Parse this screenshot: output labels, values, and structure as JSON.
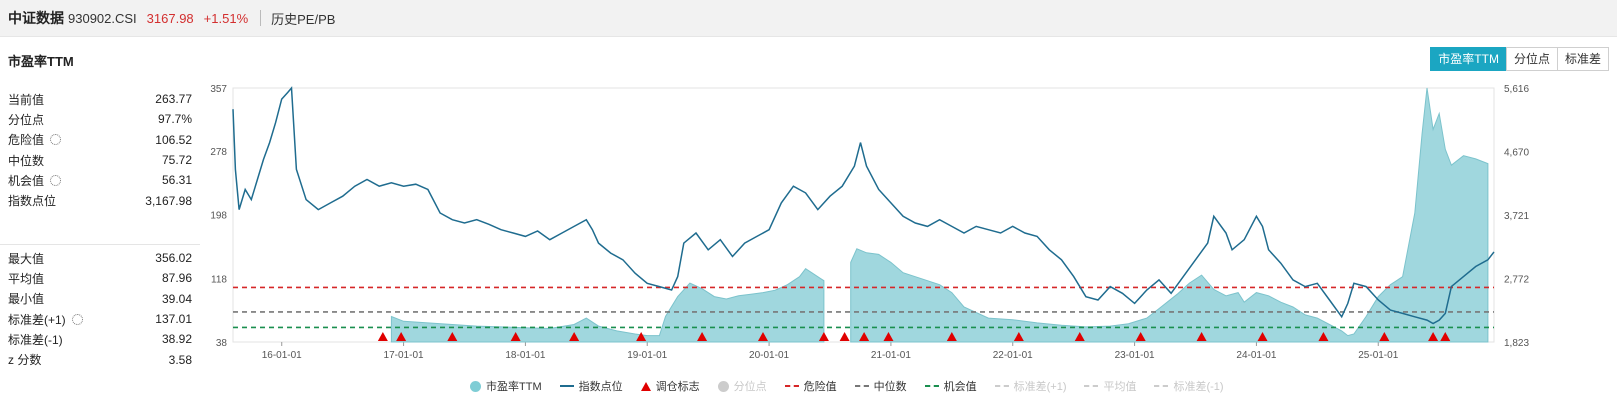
{
  "header": {
    "brand": "中证数据",
    "code": "930902.CSI",
    "price": "3167.98",
    "change": "+1.51%",
    "subtitle": "历史PE/PB"
  },
  "section_title": "市盈率TTM",
  "tabs": [
    {
      "label": "市盈率TTM",
      "active": true
    },
    {
      "label": "分位点",
      "active": false
    },
    {
      "label": "标准差",
      "active": false
    }
  ],
  "stats_top": [
    {
      "label": "当前值",
      "value": "263.77",
      "gear": false
    },
    {
      "label": "分位点",
      "value": "97.7%",
      "gear": false
    },
    {
      "label": "危险值",
      "value": "106.52",
      "gear": true
    },
    {
      "label": "中位数",
      "value": "75.72",
      "gear": false
    },
    {
      "label": "机会值",
      "value": "56.31",
      "gear": true
    },
    {
      "label": "指数点位",
      "value": "3,167.98",
      "gear": false
    }
  ],
  "stats_bottom": [
    {
      "label": "最大值",
      "value": "356.02",
      "gear": false
    },
    {
      "label": "平均值",
      "value": "87.96",
      "gear": false
    },
    {
      "label": "最小值",
      "value": "39.04",
      "gear": false
    },
    {
      "label": "标准差(+1)",
      "value": "137.01",
      "gear": true
    },
    {
      "label": "标准差(-1)",
      "value": "38.92",
      "gear": false
    },
    {
      "label": "z 分数",
      "value": "3.58",
      "gear": false
    }
  ],
  "legend": [
    {
      "label": "市盈率TTM",
      "symbol": "dot",
      "color": "#7fcdd5",
      "active": true
    },
    {
      "label": "指数点位",
      "symbol": "line",
      "color": "#1f6c8f",
      "active": true
    },
    {
      "label": "调仓标志",
      "symbol": "triangle",
      "color": "#e00000",
      "active": true
    },
    {
      "label": "分位点",
      "symbol": "dot",
      "color": "#cccccc",
      "active": false
    },
    {
      "label": "危险值",
      "symbol": "dash",
      "color": "#d62728",
      "active": true
    },
    {
      "label": "中位数",
      "symbol": "dash",
      "color": "#777777",
      "active": true
    },
    {
      "label": "机会值",
      "symbol": "dash",
      "color": "#1a8f4f",
      "active": true
    },
    {
      "label": "标准差(+1)",
      "symbol": "dash",
      "color": "#cccccc",
      "active": false
    },
    {
      "label": "平均值",
      "symbol": "dash",
      "color": "#cccccc",
      "active": false
    },
    {
      "label": "标准差(-1)",
      "symbol": "dash",
      "color": "#cccccc",
      "active": false
    }
  ],
  "chart_data": {
    "type": "area",
    "x_ticks": [
      "16-01-01",
      "17-01-01",
      "18-01-01",
      "19-01-01",
      "20-01-01",
      "21-01-01",
      "22-01-01",
      "23-01-01",
      "24-01-01",
      "25-01-01"
    ],
    "x_range": [
      2015.6,
      2025.95
    ],
    "y_left": {
      "range": [
        38,
        357
      ],
      "ticks": [
        38,
        118,
        198,
        278,
        357
      ]
    },
    "y_right": {
      "range": [
        1823,
        5616
      ],
      "ticks": [
        1823,
        2772,
        3721,
        4670,
        5616
      ]
    },
    "reference_lines": {
      "danger": 106.52,
      "median": 75.72,
      "opportunity": 56.31
    },
    "series": [
      {
        "name": "市盈率TTM",
        "axis": "left",
        "segments": [
          [
            [
              2016.9,
              70
            ],
            [
              2017.0,
              64
            ],
            [
              2017.2,
              62
            ],
            [
              2017.4,
              60
            ],
            [
              2017.6,
              58
            ],
            [
              2017.8,
              57
            ],
            [
              2018.0,
              56
            ],
            [
              2018.2,
              55
            ],
            [
              2018.4,
              60
            ],
            [
              2018.5,
              68
            ],
            [
              2018.6,
              58
            ],
            [
              2018.75,
              52
            ],
            [
              2018.9,
              48
            ],
            [
              2019.0,
              46
            ],
            [
              2019.1,
              46
            ],
            [
              2019.15,
              70
            ],
            [
              2019.25,
              95
            ],
            [
              2019.35,
              112
            ],
            [
              2019.45,
              105
            ],
            [
              2019.55,
              95
            ],
            [
              2019.65,
              92
            ],
            [
              2019.75,
              96
            ],
            [
              2019.85,
              98
            ],
            [
              2019.95,
              100
            ],
            [
              2020.05,
              103
            ],
            [
              2020.15,
              110
            ],
            [
              2020.25,
              120
            ],
            [
              2020.3,
              130
            ],
            [
              2020.35,
              125
            ],
            [
              2020.42,
              118
            ],
            [
              2020.45,
              115
            ]
          ],
          [
            [
              2020.67,
              138
            ],
            [
              2020.72,
              155
            ],
            [
              2020.8,
              150
            ],
            [
              2020.9,
              148
            ],
            [
              2021.0,
              138
            ],
            [
              2021.1,
              125
            ],
            [
              2021.2,
              120
            ],
            [
              2021.3,
              115
            ],
            [
              2021.4,
              110
            ],
            [
              2021.5,
              100
            ],
            [
              2021.6,
              82
            ],
            [
              2021.8,
              68
            ],
            [
              2022.0,
              66
            ],
            [
              2022.2,
              62
            ],
            [
              2022.4,
              59
            ],
            [
              2022.6,
              57
            ],
            [
              2022.8,
              58
            ],
            [
              2022.95,
              61
            ],
            [
              2023.1,
              68
            ],
            [
              2023.2,
              80
            ],
            [
              2023.35,
              98
            ],
            [
              2023.45,
              112
            ],
            [
              2023.55,
              122
            ],
            [
              2023.65,
              104
            ],
            [
              2023.75,
              96
            ],
            [
              2023.85,
              100
            ],
            [
              2023.9,
              88
            ],
            [
              2024.0,
              100
            ],
            [
              2024.1,
              96
            ],
            [
              2024.2,
              88
            ],
            [
              2024.3,
              82
            ],
            [
              2024.4,
              72
            ],
            [
              2024.5,
              68
            ],
            [
              2024.6,
              60
            ],
            [
              2024.7,
              52
            ],
            [
              2024.75,
              46
            ],
            [
              2024.8,
              48
            ],
            [
              2024.9,
              70
            ],
            [
              2025.0,
              95
            ],
            [
              2025.1,
              110
            ],
            [
              2025.2,
              120
            ],
            [
              2025.3,
              200
            ],
            [
              2025.36,
              300
            ],
            [
              2025.4,
              357
            ],
            [
              2025.45,
              305
            ],
            [
              2025.5,
              325
            ],
            [
              2025.55,
              280
            ],
            [
              2025.6,
              260
            ],
            [
              2025.7,
              272
            ],
            [
              2025.8,
              268
            ],
            [
              2025.9,
              262
            ]
          ]
        ]
      },
      {
        "name": "指数点位",
        "axis": "right",
        "points": [
          [
            2015.6,
            5300
          ],
          [
            2015.62,
            4400
          ],
          [
            2015.65,
            3800
          ],
          [
            2015.7,
            4100
          ],
          [
            2015.75,
            3950
          ],
          [
            2015.8,
            4250
          ],
          [
            2015.85,
            4550
          ],
          [
            2015.9,
            4800
          ],
          [
            2015.95,
            5100
          ],
          [
            2016.0,
            5450
          ],
          [
            2016.05,
            5550
          ],
          [
            2016.08,
            5616
          ],
          [
            2016.12,
            4400
          ],
          [
            2016.2,
            3950
          ],
          [
            2016.3,
            3800
          ],
          [
            2016.4,
            3900
          ],
          [
            2016.5,
            4000
          ],
          [
            2016.6,
            4150
          ],
          [
            2016.7,
            4250
          ],
          [
            2016.8,
            4150
          ],
          [
            2016.9,
            4200
          ],
          [
            2017.0,
            4150
          ],
          [
            2017.1,
            4180
          ],
          [
            2017.2,
            4100
          ],
          [
            2017.3,
            3750
          ],
          [
            2017.4,
            3650
          ],
          [
            2017.5,
            3600
          ],
          [
            2017.6,
            3650
          ],
          [
            2017.7,
            3580
          ],
          [
            2017.8,
            3500
          ],
          [
            2017.9,
            3450
          ],
          [
            2018.0,
            3400
          ],
          [
            2018.1,
            3480
          ],
          [
            2018.2,
            3350
          ],
          [
            2018.3,
            3450
          ],
          [
            2018.4,
            3550
          ],
          [
            2018.5,
            3650
          ],
          [
            2018.55,
            3500
          ],
          [
            2018.6,
            3300
          ],
          [
            2018.7,
            3150
          ],
          [
            2018.8,
            3050
          ],
          [
            2018.9,
            2850
          ],
          [
            2019.0,
            2700
          ],
          [
            2019.1,
            2650
          ],
          [
            2019.2,
            2600
          ],
          [
            2019.25,
            2800
          ],
          [
            2019.3,
            3300
          ],
          [
            2019.4,
            3450
          ],
          [
            2019.5,
            3200
          ],
          [
            2019.6,
            3350
          ],
          [
            2019.7,
            3100
          ],
          [
            2019.8,
            3300
          ],
          [
            2019.9,
            3400
          ],
          [
            2020.0,
            3500
          ],
          [
            2020.1,
            3900
          ],
          [
            2020.2,
            4150
          ],
          [
            2020.3,
            4050
          ],
          [
            2020.4,
            3800
          ],
          [
            2020.5,
            4000
          ],
          [
            2020.6,
            4150
          ],
          [
            2020.7,
            4450
          ],
          [
            2020.75,
            4800
          ],
          [
            2020.8,
            4450
          ],
          [
            2020.9,
            4100
          ],
          [
            2021.0,
            3900
          ],
          [
            2021.1,
            3700
          ],
          [
            2021.2,
            3600
          ],
          [
            2021.3,
            3550
          ],
          [
            2021.4,
            3650
          ],
          [
            2021.5,
            3550
          ],
          [
            2021.6,
            3450
          ],
          [
            2021.7,
            3550
          ],
          [
            2021.8,
            3500
          ],
          [
            2021.9,
            3450
          ],
          [
            2022.0,
            3550
          ],
          [
            2022.1,
            3450
          ],
          [
            2022.2,
            3400
          ],
          [
            2022.3,
            3200
          ],
          [
            2022.4,
            3050
          ],
          [
            2022.5,
            2800
          ],
          [
            2022.6,
            2500
          ],
          [
            2022.7,
            2450
          ],
          [
            2022.8,
            2650
          ],
          [
            2022.9,
            2550
          ],
          [
            2023.0,
            2400
          ],
          [
            2023.1,
            2600
          ],
          [
            2023.2,
            2750
          ],
          [
            2023.3,
            2550
          ],
          [
            2023.4,
            2800
          ],
          [
            2023.5,
            3050
          ],
          [
            2023.6,
            3300
          ],
          [
            2023.65,
            3700
          ],
          [
            2023.75,
            3450
          ],
          [
            2023.8,
            3200
          ],
          [
            2023.9,
            3350
          ],
          [
            2024.0,
            3700
          ],
          [
            2024.05,
            3550
          ],
          [
            2024.1,
            3200
          ],
          [
            2024.2,
            3000
          ],
          [
            2024.3,
            2750
          ],
          [
            2024.4,
            2650
          ],
          [
            2024.5,
            2700
          ],
          [
            2024.6,
            2450
          ],
          [
            2024.7,
            2200
          ],
          [
            2024.75,
            2400
          ],
          [
            2024.8,
            2700
          ],
          [
            2024.9,
            2650
          ],
          [
            2025.0,
            2450
          ],
          [
            2025.1,
            2300
          ],
          [
            2025.2,
            2250
          ],
          [
            2025.3,
            2200
          ],
          [
            2025.4,
            2150
          ],
          [
            2025.45,
            2100
          ],
          [
            2025.5,
            2150
          ],
          [
            2025.55,
            2250
          ],
          [
            2025.6,
            2650
          ],
          [
            2025.7,
            2800
          ],
          [
            2025.8,
            2950
          ],
          [
            2025.9,
            3050
          ],
          [
            2025.95,
            3168
          ]
        ]
      }
    ],
    "rebalance_markers": [
      2016.83,
      2016.98,
      2017.4,
      2017.92,
      2018.4,
      2018.95,
      2019.45,
      2019.95,
      2020.45,
      2020.62,
      2020.78,
      2020.98,
      2021.5,
      2022.05,
      2022.55,
      2023.05,
      2023.55,
      2024.05,
      2024.55,
      2025.05,
      2025.45,
      2025.55
    ]
  }
}
